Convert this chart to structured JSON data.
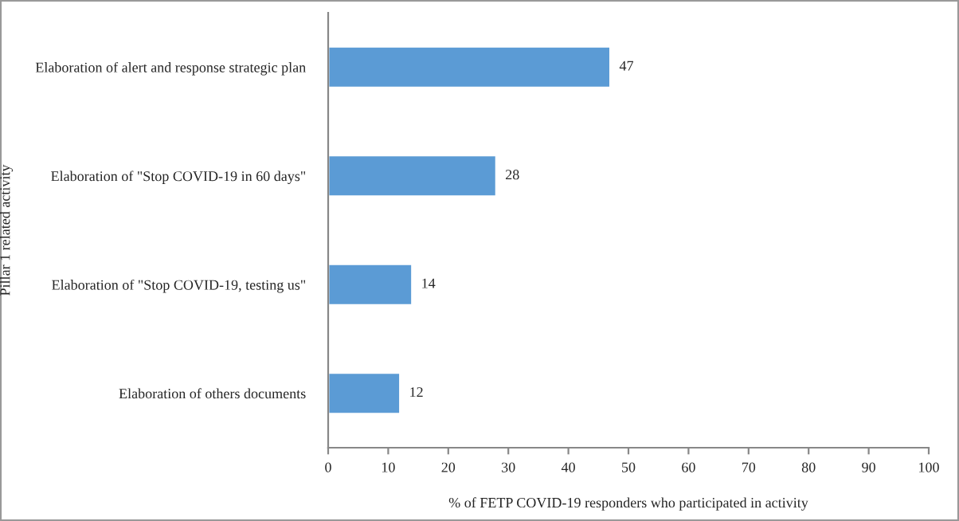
{
  "chart_data": {
    "type": "bar",
    "orientation": "horizontal",
    "categories": [
      "Elaboration of alert and response strategic plan",
      "Elaboration of \"Stop COVID-19 in 60 days\"",
      "Elaboration of \"Stop COVID-19, testing us\"",
      "Elaboration of others documents"
    ],
    "values": [
      47,
      28,
      14,
      12
    ],
    "color": "#5b9bd5",
    "xlabel": "% of FETP COVID-19 responders who participated in activity",
    "ylabel": "Pillar 1 related activity",
    "xlim": [
      0,
      100
    ],
    "xticks": [
      0,
      10,
      20,
      30,
      40,
      50,
      60,
      70,
      80,
      90,
      100
    ],
    "data_labels": true,
    "grid": false,
    "legend": false
  }
}
